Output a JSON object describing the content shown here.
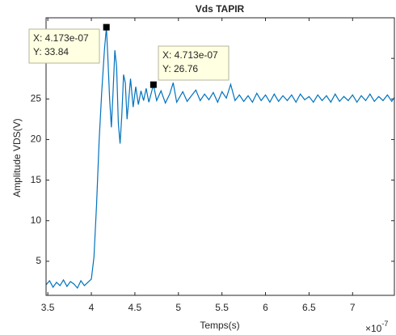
{
  "chart_data": {
    "type": "line",
    "title": "Vds TAPIR",
    "x_label": "Temps(s)",
    "y_label": "Amplitude VDS(V)",
    "x_exponent": {
      "base": "×10",
      "power": "-7"
    },
    "xlim": [
      3.48e-07,
      7.48e-07
    ],
    "xticks": [
      {
        "value": 3.5e-07,
        "label": "3.5"
      },
      {
        "value": 4e-07,
        "label": "4"
      },
      {
        "value": 4.5e-07,
        "label": "4.5"
      },
      {
        "value": 5e-07,
        "label": "5"
      },
      {
        "value": 5.5e-07,
        "label": "5.5"
      },
      {
        "value": 6e-07,
        "label": "6"
      },
      {
        "value": 6.5e-07,
        "label": "6.5"
      },
      {
        "value": 7e-07,
        "label": "7"
      }
    ],
    "ylim": [
      0.8,
      35
    ],
    "yticks": [
      5,
      10,
      15,
      20,
      25,
      30
    ],
    "grid": false,
    "series": [
      {
        "name": "Vds",
        "color": "#0072bd",
        "x": [
          3.48e-07,
          3.52e-07,
          3.56e-07,
          3.6e-07,
          3.64e-07,
          3.68e-07,
          3.72e-07,
          3.76e-07,
          3.8e-07,
          3.84e-07,
          3.88e-07,
          3.92e-07,
          3.96e-07,
          4e-07,
          4.03e-07,
          4.06e-07,
          4.09e-07,
          4.12e-07,
          4.15e-07,
          4.173e-07,
          4.19e-07,
          4.21e-07,
          4.23e-07,
          4.25e-07,
          4.27e-07,
          4.29e-07,
          4.31e-07,
          4.33e-07,
          4.35e-07,
          4.37e-07,
          4.39e-07,
          4.41e-07,
          4.43e-07,
          4.45e-07,
          4.48e-07,
          4.51e-07,
          4.54e-07,
          4.57e-07,
          4.6e-07,
          4.63e-07,
          4.66e-07,
          4.69e-07,
          4.713e-07,
          4.75e-07,
          4.8e-07,
          4.85e-07,
          4.9e-07,
          4.94e-07,
          4.98e-07,
          5.05e-07,
          5.1e-07,
          5.15e-07,
          5.2e-07,
          5.25e-07,
          5.3e-07,
          5.35e-07,
          5.4e-07,
          5.45e-07,
          5.5e-07,
          5.55e-07,
          5.6e-07,
          5.65e-07,
          5.7e-07,
          5.75e-07,
          5.8e-07,
          5.85e-07,
          5.9e-07,
          5.95e-07,
          6e-07,
          6.05e-07,
          6.1e-07,
          6.15e-07,
          6.2e-07,
          6.25e-07,
          6.3e-07,
          6.35e-07,
          6.4e-07,
          6.45e-07,
          6.5e-07,
          6.55e-07,
          6.6e-07,
          6.65e-07,
          6.7e-07,
          6.75e-07,
          6.8e-07,
          6.85e-07,
          6.9e-07,
          6.95e-07,
          7e-07,
          7.05e-07,
          7.1e-07,
          7.15e-07,
          7.2e-07,
          7.25e-07,
          7.3e-07,
          7.35e-07,
          7.4e-07,
          7.45e-07,
          7.48e-07
        ],
        "values": [
          2.1,
          2.6,
          1.8,
          2.4,
          2.0,
          2.7,
          1.9,
          2.5,
          2.2,
          1.7,
          2.6,
          2.0,
          2.4,
          2.8,
          5.5,
          12,
          20,
          26,
          31,
          33.84,
          30,
          25,
          21.5,
          26,
          31,
          29,
          22,
          19.5,
          23,
          28,
          27,
          22.5,
          25,
          27.5,
          24,
          26.5,
          24.3,
          26,
          24.8,
          26.3,
          24.6,
          25.8,
          26.76,
          24.8,
          26.0,
          24.5,
          25.6,
          27.0,
          24.6,
          25.9,
          24.7,
          25.4,
          26.1,
          24.8,
          25.6,
          24.9,
          25.8,
          24.6,
          25.9,
          25.1,
          26.8,
          24.8,
          25.5,
          24.7,
          25.4,
          24.6,
          25.7,
          24.8,
          25.5,
          24.6,
          25.6,
          24.7,
          25.4,
          24.8,
          25.5,
          24.6,
          25.6,
          24.9,
          25.3,
          24.6,
          25.5,
          24.8,
          25.4,
          24.6,
          25.6,
          24.7,
          25.3,
          24.8,
          25.5,
          24.6,
          25.4,
          24.8,
          25.6,
          24.7,
          25.3,
          24.8,
          25.5,
          24.7,
          25.2
        ]
      }
    ],
    "datatips": [
      {
        "x": 4.173e-07,
        "y": 33.84,
        "x_label": "X: 4.173e-07",
        "y_label": "Y: 33.84"
      },
      {
        "x": 4.713e-07,
        "y": 26.76,
        "x_label": "X: 4.713e-07",
        "y_label": "Y: 26.76"
      }
    ]
  }
}
